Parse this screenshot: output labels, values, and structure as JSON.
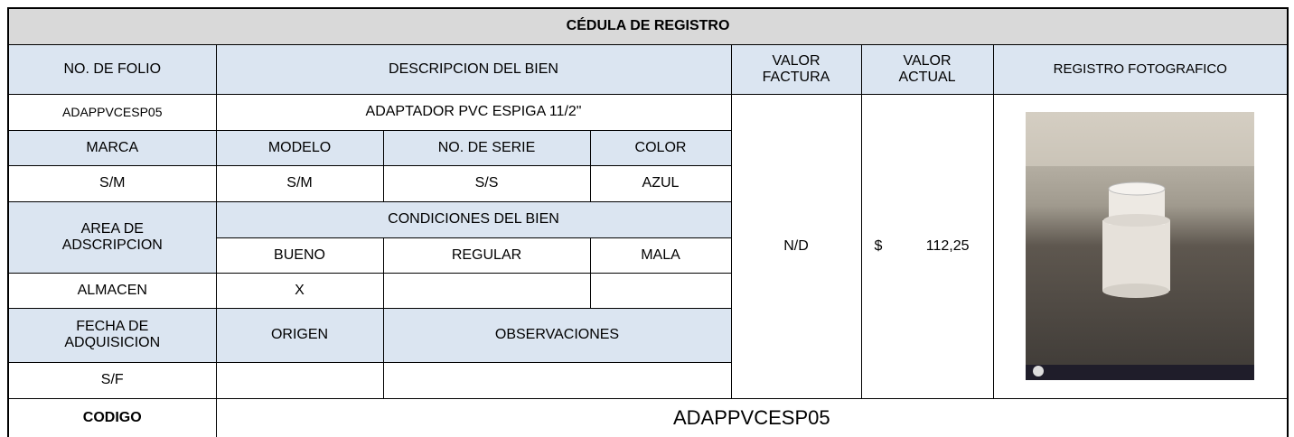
{
  "title": "CÉDULA DE REGISTRO",
  "headers": {
    "folio": "NO. DE FOLIO",
    "descripcion": "DESCRIPCION DEL BIEN",
    "valor_factura": "VALOR FACTURA",
    "valor_actual": "VALOR ACTUAL",
    "registro": "REGISTRO FOTOGRAFICO"
  },
  "item": {
    "folio": "ADAPPVCESP05",
    "descripcion": "ADAPTADOR PVC ESPIGA 11/2\"",
    "valor_factura": "N/D",
    "moneda": "$",
    "valor_actual": "112,25"
  },
  "detalle_headers": {
    "marca": "MARCA",
    "modelo": "MODELO",
    "serie": "NO. DE SERIE",
    "color": "COLOR"
  },
  "detalle": {
    "marca": "S/M",
    "modelo": "S/M",
    "serie": "S/S",
    "color": "AZUL"
  },
  "area_header": "AREA DE ADSCRIPCION",
  "condiciones_header": "CONDICIONES DEL BIEN",
  "condiciones": {
    "bueno": "BUENO",
    "regular": "REGULAR",
    "mala": "MALA"
  },
  "area": "ALMACEN",
  "marca_condicion": "X",
  "fecha_headers": {
    "fecha": "FECHA DE ADQUISICION",
    "origen": "ORIGEN",
    "observaciones": "OBSERVACIONES"
  },
  "fecha": "S/F",
  "codigo": {
    "label": "CODIGO",
    "value": "ADAPPVCESP05"
  }
}
